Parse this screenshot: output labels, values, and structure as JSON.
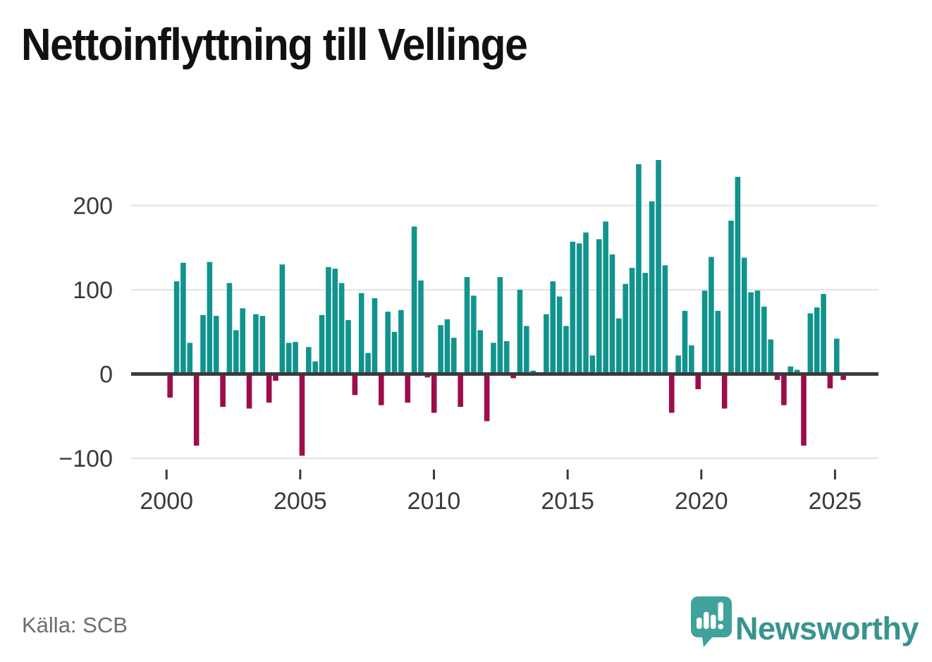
{
  "title": "Nettoinflyttning till Vellinge",
  "source": "Källa: SCB",
  "logo": {
    "brand": "Newsworthy",
    "bubble_color": "#3fa29b",
    "text_color": "#38948d"
  },
  "chart_data": {
    "type": "bar",
    "title": "Nettoinflyttning till Vellinge",
    "x_unit": "quarter",
    "xlabel": "",
    "ylabel": "",
    "grid": "horizontal",
    "ylim": [
      -120,
      270
    ],
    "positive_color": "#11948d",
    "negative_color": "#9e0c4a",
    "axis_color": "#3a3a3a",
    "grid_color": "#e3e3e3",
    "yticks": [
      {
        "label": "200",
        "v": 200
      },
      {
        "label": "100",
        "v": 100
      },
      {
        "label": "0",
        "v": 0
      },
      {
        "label": "−100",
        "v": -100
      }
    ],
    "xticks": [
      {
        "label": "2000",
        "year": 2000
      },
      {
        "label": "2005",
        "year": 2005
      },
      {
        "label": "2010",
        "year": 2010
      },
      {
        "label": "2015",
        "year": 2015
      },
      {
        "label": "2020",
        "year": 2020
      },
      {
        "label": "2025",
        "year": 2025
      }
    ],
    "categories": [
      "2000Q1",
      "2000Q2",
      "2000Q3",
      "2000Q4",
      "2001Q1",
      "2001Q2",
      "2001Q3",
      "2001Q4",
      "2002Q1",
      "2002Q2",
      "2002Q3",
      "2002Q4",
      "2003Q1",
      "2003Q2",
      "2003Q3",
      "2003Q4",
      "2004Q1",
      "2004Q2",
      "2004Q3",
      "2004Q4",
      "2005Q1",
      "2005Q2",
      "2005Q3",
      "2005Q4",
      "2006Q1",
      "2006Q2",
      "2006Q3",
      "2006Q4",
      "2007Q1",
      "2007Q2",
      "2007Q3",
      "2007Q4",
      "2008Q1",
      "2008Q2",
      "2008Q3",
      "2008Q4",
      "2009Q1",
      "2009Q2",
      "2009Q3",
      "2009Q4",
      "2010Q1",
      "2010Q2",
      "2010Q3",
      "2010Q4",
      "2011Q1",
      "2011Q2",
      "2011Q3",
      "2011Q4",
      "2012Q1",
      "2012Q2",
      "2012Q3",
      "2012Q4",
      "2013Q1",
      "2013Q2",
      "2013Q3",
      "2013Q4",
      "2014Q1",
      "2014Q2",
      "2014Q3",
      "2014Q4",
      "2015Q1",
      "2015Q2",
      "2015Q3",
      "2015Q4",
      "2016Q1",
      "2016Q2",
      "2016Q3",
      "2016Q4",
      "2017Q1",
      "2017Q2",
      "2017Q3",
      "2017Q4",
      "2018Q1",
      "2018Q2",
      "2018Q3",
      "2018Q4",
      "2019Q1",
      "2019Q2",
      "2019Q3",
      "2019Q4",
      "2020Q1",
      "2020Q2",
      "2020Q3",
      "2020Q4",
      "2021Q1",
      "2021Q2",
      "2021Q3",
      "2021Q4",
      "2022Q1",
      "2022Q2",
      "2022Q3",
      "2022Q4",
      "2023Q1",
      "2023Q2",
      "2023Q3",
      "2023Q4",
      "2024Q1",
      "2024Q2",
      "2024Q3",
      "2024Q4",
      "2025Q1",
      "2025Q2",
      "2025Q3"
    ],
    "values": [
      -28,
      110,
      132,
      37,
      -85,
      70,
      133,
      69,
      -39,
      108,
      52,
      78,
      -41,
      71,
      69,
      -34,
      -8,
      130,
      37,
      38,
      -97,
      32,
      15,
      70,
      127,
      125,
      108,
      64,
      -25,
      96,
      25,
      90,
      -37,
      74,
      50,
      76,
      -34,
      175,
      111,
      -4,
      -46,
      58,
      65,
      43,
      -39,
      115,
      93,
      52,
      -56,
      37,
      115,
      39,
      -5,
      100,
      57,
      4,
      2,
      71,
      110,
      92,
      57,
      157,
      155,
      168,
      22,
      160,
      181,
      142,
      66,
      107,
      126,
      249,
      120,
      205,
      254,
      129,
      -46,
      22,
      75,
      34,
      -18,
      99,
      139,
      75,
      -41,
      182,
      234,
      138,
      97,
      99,
      80,
      41,
      -7,
      -37,
      9,
      5,
      -85,
      72,
      79,
      95,
      -17,
      42,
      -7
    ]
  }
}
